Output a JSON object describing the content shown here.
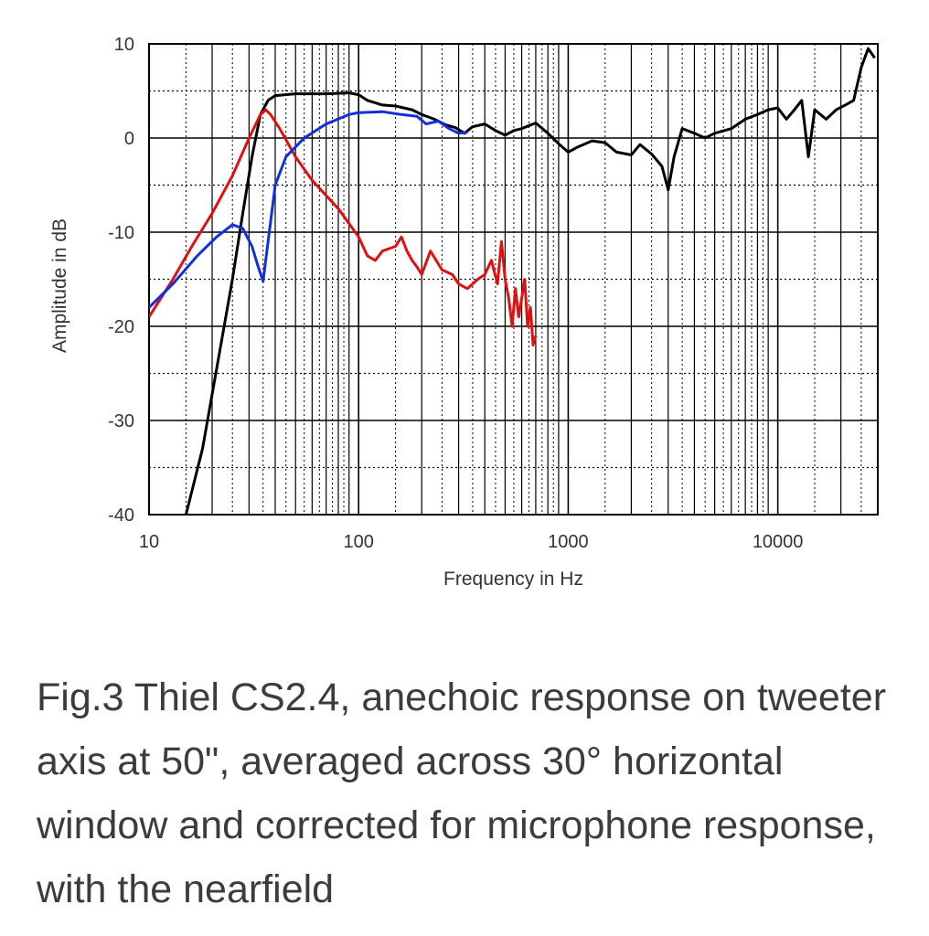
{
  "chart_data": {
    "type": "line",
    "xscale": "log",
    "xlim": [
      10,
      30000
    ],
    "ylim": [
      -40,
      10
    ],
    "xticks": [
      10,
      100,
      1000,
      10000
    ],
    "xtick_labels": [
      "10",
      "100",
      "1000",
      "10000"
    ],
    "yticks": [
      10,
      0,
      -10,
      -20,
      -30,
      -40
    ],
    "ytick_labels": [
      "10",
      "0",
      "-10",
      "-20",
      "-30",
      "-40"
    ],
    "xlabel": "Frequency in Hz",
    "ylabel": "Amplitude in dB",
    "grid": true,
    "colors": {
      "black": "#000000",
      "red": "#e01010",
      "blue": "#1030e0",
      "grid": "#000000"
    },
    "series": [
      {
        "color": "black",
        "points": [
          [
            15,
            -40
          ],
          [
            18,
            -33
          ],
          [
            22,
            -22
          ],
          [
            25,
            -15
          ],
          [
            28,
            -8
          ],
          [
            31,
            -2
          ],
          [
            34,
            2.5
          ],
          [
            37,
            4
          ],
          [
            40,
            4.5
          ],
          [
            50,
            4.7
          ],
          [
            70,
            4.7
          ],
          [
            90,
            4.8
          ],
          [
            100,
            4.6
          ],
          [
            110,
            4
          ],
          [
            130,
            3.5
          ],
          [
            150,
            3.4
          ],
          [
            180,
            3
          ],
          [
            200,
            2.5
          ],
          [
            230,
            2
          ],
          [
            260,
            1.4
          ],
          [
            290,
            1.1
          ],
          [
            320,
            0.5
          ],
          [
            350,
            1.2
          ],
          [
            400,
            1.5
          ],
          [
            450,
            0.8
          ],
          [
            500,
            0.3
          ],
          [
            550,
            0.8
          ],
          [
            600,
            1
          ],
          [
            700,
            1.6
          ],
          [
            800,
            0.5
          ],
          [
            900,
            -0.6
          ],
          [
            1000,
            -1.5
          ],
          [
            1100,
            -1
          ],
          [
            1300,
            -0.3
          ],
          [
            1500,
            -0.5
          ],
          [
            1700,
            -1.5
          ],
          [
            2000,
            -1.8
          ],
          [
            2200,
            -0.7
          ],
          [
            2500,
            -1.7
          ],
          [
            2800,
            -3
          ],
          [
            3000,
            -5.5
          ],
          [
            3200,
            -2
          ],
          [
            3500,
            1
          ],
          [
            4000,
            0.5
          ],
          [
            4500,
            0
          ],
          [
            5000,
            0.5
          ],
          [
            6000,
            1
          ],
          [
            7000,
            2
          ],
          [
            8000,
            2.5
          ],
          [
            9000,
            3
          ],
          [
            10000,
            3.2
          ],
          [
            11000,
            2
          ],
          [
            12000,
            3
          ],
          [
            13000,
            4
          ],
          [
            14000,
            -2
          ],
          [
            15000,
            3
          ],
          [
            17000,
            2
          ],
          [
            19000,
            3
          ],
          [
            21000,
            3.5
          ],
          [
            23000,
            4
          ],
          [
            25000,
            7.5
          ],
          [
            27000,
            9.5
          ],
          [
            29000,
            8.5
          ]
        ]
      },
      {
        "color": "red",
        "points": [
          [
            10,
            -19
          ],
          [
            13,
            -15
          ],
          [
            16,
            -11.5
          ],
          [
            20,
            -8
          ],
          [
            25,
            -4
          ],
          [
            30,
            0
          ],
          [
            34,
            2.5
          ],
          [
            36,
            3
          ],
          [
            38,
            2.5
          ],
          [
            42,
            1
          ],
          [
            50,
            -2
          ],
          [
            60,
            -4.5
          ],
          [
            80,
            -7.5
          ],
          [
            100,
            -10.5
          ],
          [
            110,
            -12.5
          ],
          [
            120,
            -13
          ],
          [
            130,
            -12
          ],
          [
            150,
            -11.5
          ],
          [
            160,
            -10.5
          ],
          [
            170,
            -12
          ],
          [
            180,
            -13
          ],
          [
            190,
            -13.7
          ],
          [
            200,
            -14.5
          ],
          [
            220,
            -12
          ],
          [
            250,
            -14
          ],
          [
            280,
            -14.5
          ],
          [
            300,
            -15.5
          ],
          [
            330,
            -16
          ],
          [
            370,
            -15
          ],
          [
            400,
            -14.5
          ],
          [
            430,
            -13
          ],
          [
            460,
            -15.5
          ],
          [
            480,
            -11
          ],
          [
            500,
            -15
          ],
          [
            520,
            -17
          ],
          [
            540,
            -20
          ],
          [
            560,
            -16
          ],
          [
            580,
            -19
          ],
          [
            600,
            -17
          ],
          [
            620,
            -15
          ],
          [
            640,
            -20
          ],
          [
            660,
            -18
          ],
          [
            680,
            -22
          ],
          [
            700,
            -21
          ]
        ]
      },
      {
        "color": "blue",
        "points": [
          [
            10,
            -18
          ],
          [
            13,
            -15.5
          ],
          [
            17,
            -12.5
          ],
          [
            21,
            -10.5
          ],
          [
            25,
            -9.2
          ],
          [
            28,
            -9.6
          ],
          [
            31,
            -11.5
          ],
          [
            33,
            -13.5
          ],
          [
            35,
            -15.2
          ],
          [
            37,
            -11
          ],
          [
            40,
            -5
          ],
          [
            45,
            -2
          ],
          [
            55,
            0
          ],
          [
            70,
            1.5
          ],
          [
            90,
            2.5
          ],
          [
            100,
            2.7
          ],
          [
            130,
            2.8
          ],
          [
            160,
            2.5
          ],
          [
            190,
            2.3
          ],
          [
            210,
            1.5
          ],
          [
            240,
            1.8
          ],
          [
            270,
            1
          ],
          [
            300,
            0.5
          ],
          [
            330,
            0.6
          ]
        ]
      }
    ]
  },
  "caption": "Fig.3 Thiel CS2.4, anechoic response on tweeter axis at 50\", averaged across 30° horizontal window and corrected for microphone response, with the nearfield"
}
